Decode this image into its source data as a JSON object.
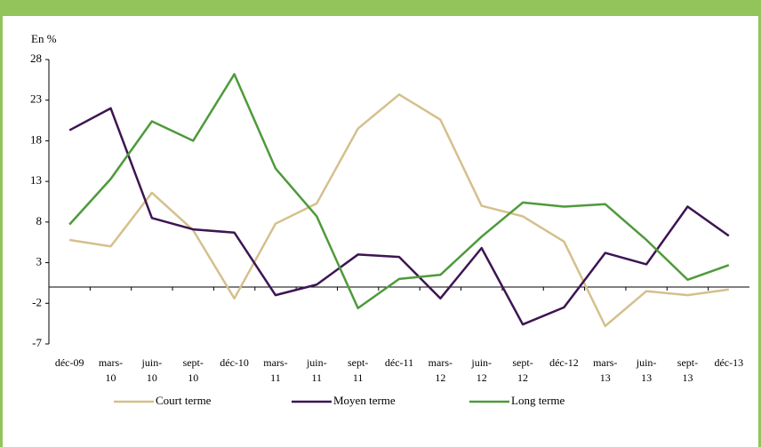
{
  "chart_data": {
    "type": "line",
    "y_label": "En %",
    "categories": [
      "déc-09",
      "mars-10",
      "juin-10",
      "sept-10",
      "déc-10",
      "mars-11",
      "juin-11",
      "sept-11",
      "déc-11",
      "mars-12",
      "juin-12",
      "sept-12",
      "déc-12",
      "mars-13",
      "juin-13",
      "sept-13",
      "déc-13"
    ],
    "series": [
      {
        "name": "Court terme",
        "color": "#d5c08c",
        "values": [
          5.8,
          5.0,
          11.6,
          7.0,
          -1.4,
          7.8,
          10.3,
          19.5,
          23.7,
          20.6,
          10.0,
          8.7,
          5.6,
          -4.8,
          -0.5,
          -1.0,
          -0.3
        ]
      },
      {
        "name": "Moyen terme",
        "color": "#3d1552",
        "values": [
          19.3,
          22.0,
          8.5,
          7.1,
          6.7,
          -1.0,
          0.3,
          4.0,
          3.7,
          -1.4,
          4.8,
          -4.6,
          -2.5,
          4.2,
          2.8,
          9.9,
          6.3
        ]
      },
      {
        "name": "Long terme",
        "color": "#4e9a3b",
        "values": [
          7.7,
          13.3,
          20.4,
          18.0,
          26.2,
          14.6,
          8.7,
          -2.6,
          1.0,
          1.5,
          6.2,
          10.4,
          9.9,
          10.2,
          5.8,
          0.9,
          2.7
        ]
      }
    ],
    "ylim": [
      -7,
      28
    ],
    "yticks": [
      -7,
      -2,
      3,
      8,
      13,
      18,
      23,
      28
    ]
  }
}
